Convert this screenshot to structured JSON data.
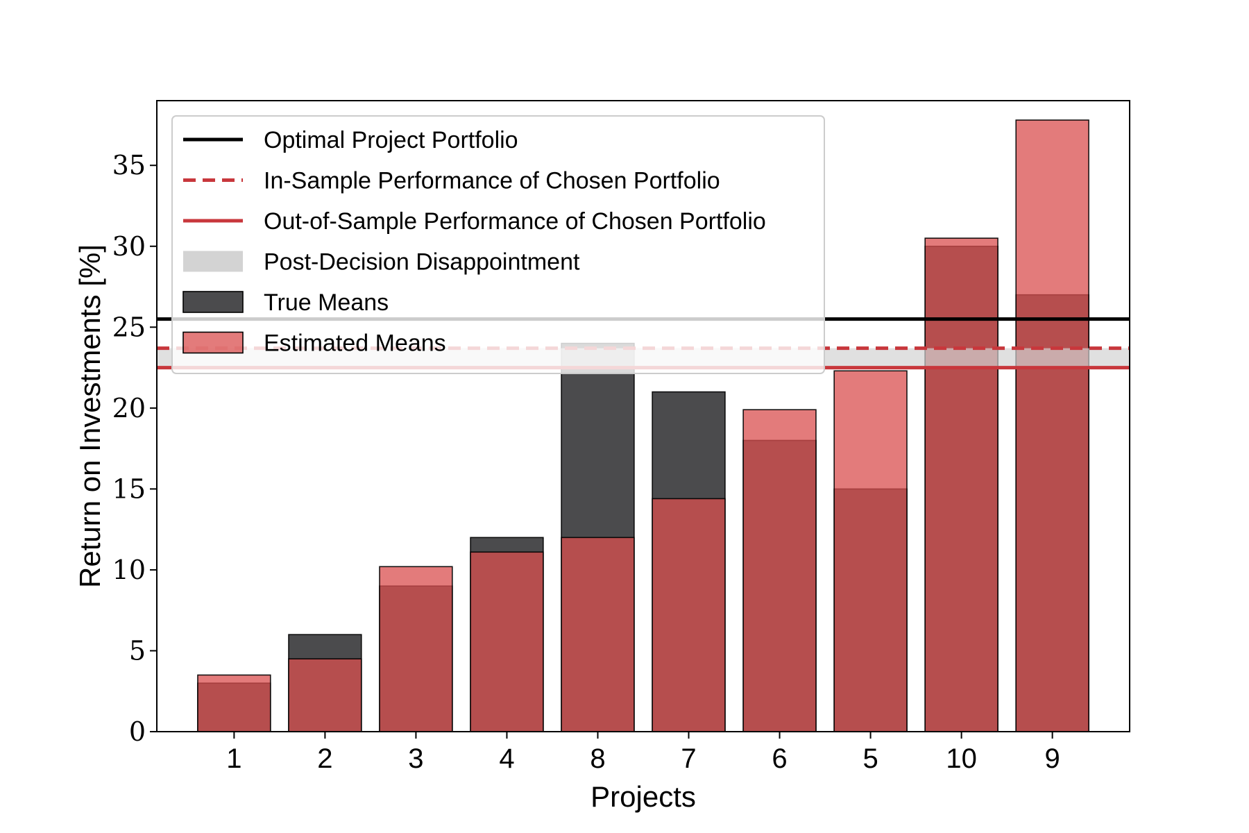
{
  "chart_data": {
    "type": "bar",
    "xlabel": "Projects",
    "ylabel": "Return on Investments [%]",
    "ylim": [
      0,
      39
    ],
    "yticks": [
      0,
      5,
      10,
      15,
      20,
      25,
      30,
      35
    ],
    "categories": [
      "1",
      "2",
      "3",
      "4",
      "8",
      "7",
      "6",
      "5",
      "10",
      "9"
    ],
    "series": [
      {
        "name": "True Means",
        "color": "#4b4b4d",
        "values": [
          3.0,
          6.0,
          9.0,
          12.0,
          24.0,
          21.0,
          18.0,
          15.0,
          30.0,
          27.0
        ]
      },
      {
        "name": "Estimated Means",
        "color": "#d94f4f",
        "values": [
          3.5,
          4.5,
          10.2,
          11.1,
          12.0,
          14.4,
          19.9,
          22.3,
          30.5,
          37.8
        ]
      }
    ],
    "reference_lines": [
      {
        "name": "Optimal Project Portfolio",
        "value": 25.5,
        "color": "#000000",
        "style": "solid"
      },
      {
        "name": "In-Sample Performance of Chosen Portfolio",
        "value": 23.7,
        "color": "#c8373c",
        "style": "dashed"
      },
      {
        "name": "Out-of-Sample Performance of Chosen Portfolio",
        "value": 22.5,
        "color": "#c8373c",
        "style": "solid"
      }
    ],
    "band": {
      "name": "Post-Decision Disappointment",
      "from": 22.5,
      "to": 23.7,
      "color": "#d3d3d3"
    },
    "legend": {
      "placement": "top-left",
      "items": [
        {
          "label": "Optimal Project Portfolio",
          "kind": "line",
          "color": "#000000"
        },
        {
          "label": "In-Sample Performance of Chosen Portfolio",
          "kind": "dashed-line",
          "color": "#c8373c"
        },
        {
          "label": "Out-of-Sample Performance of Chosen Portfolio",
          "kind": "line",
          "color": "#c8373c"
        },
        {
          "label": "Post-Decision Disappointment",
          "kind": "band",
          "color": "#d3d3d3"
        },
        {
          "label": "True Means",
          "kind": "patch",
          "color": "#4b4b4d"
        },
        {
          "label": "Estimated Means",
          "kind": "patch",
          "color": "#d94f4f"
        }
      ]
    },
    "grid": false
  }
}
